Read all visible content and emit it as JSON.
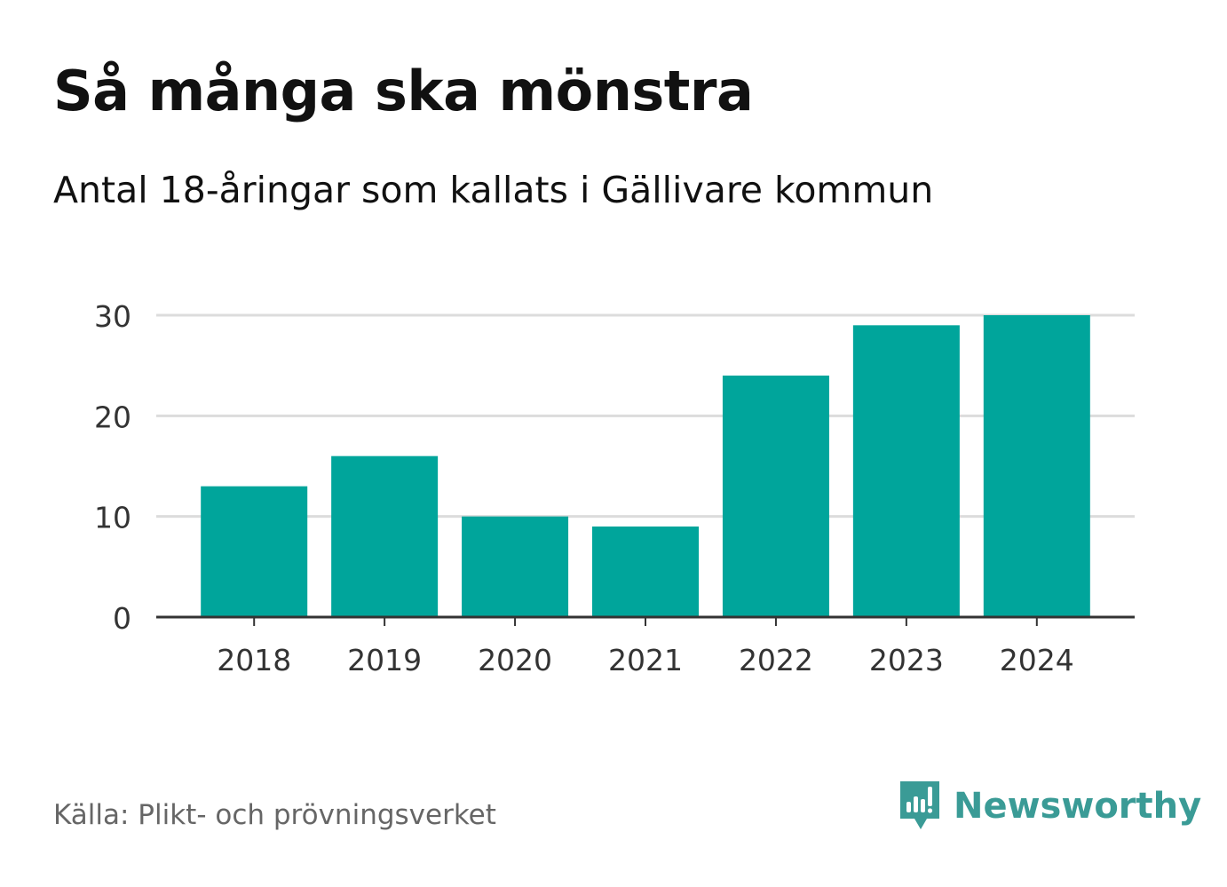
{
  "title": "Så många ska mönstra",
  "subtitle": "Antal 18-åringar som kallats i Gällivare kommun",
  "source": "Källa: Plikt- och prövningsverket",
  "brand": {
    "name": "Newsworthy",
    "icon": "newsworthy-chart-icon",
    "color": "#3a9b96"
  },
  "chart_data": {
    "type": "bar",
    "title": "Så många ska mönstra",
    "subtitle": "Antal 18-åringar som kallats i Gällivare kommun",
    "xlabel": "",
    "ylabel": "",
    "categories": [
      "2018",
      "2019",
      "2020",
      "2021",
      "2022",
      "2023",
      "2024"
    ],
    "values": [
      13,
      16,
      10,
      9,
      24,
      29,
      30
    ],
    "ylim": [
      0,
      30
    ],
    "yticks": [
      "0",
      "10",
      "20",
      "30"
    ],
    "grid": true,
    "legend": "none",
    "bar_color": "#00a59b",
    "grid_color": "#dcdcdc",
    "axis_color": "#333333"
  }
}
